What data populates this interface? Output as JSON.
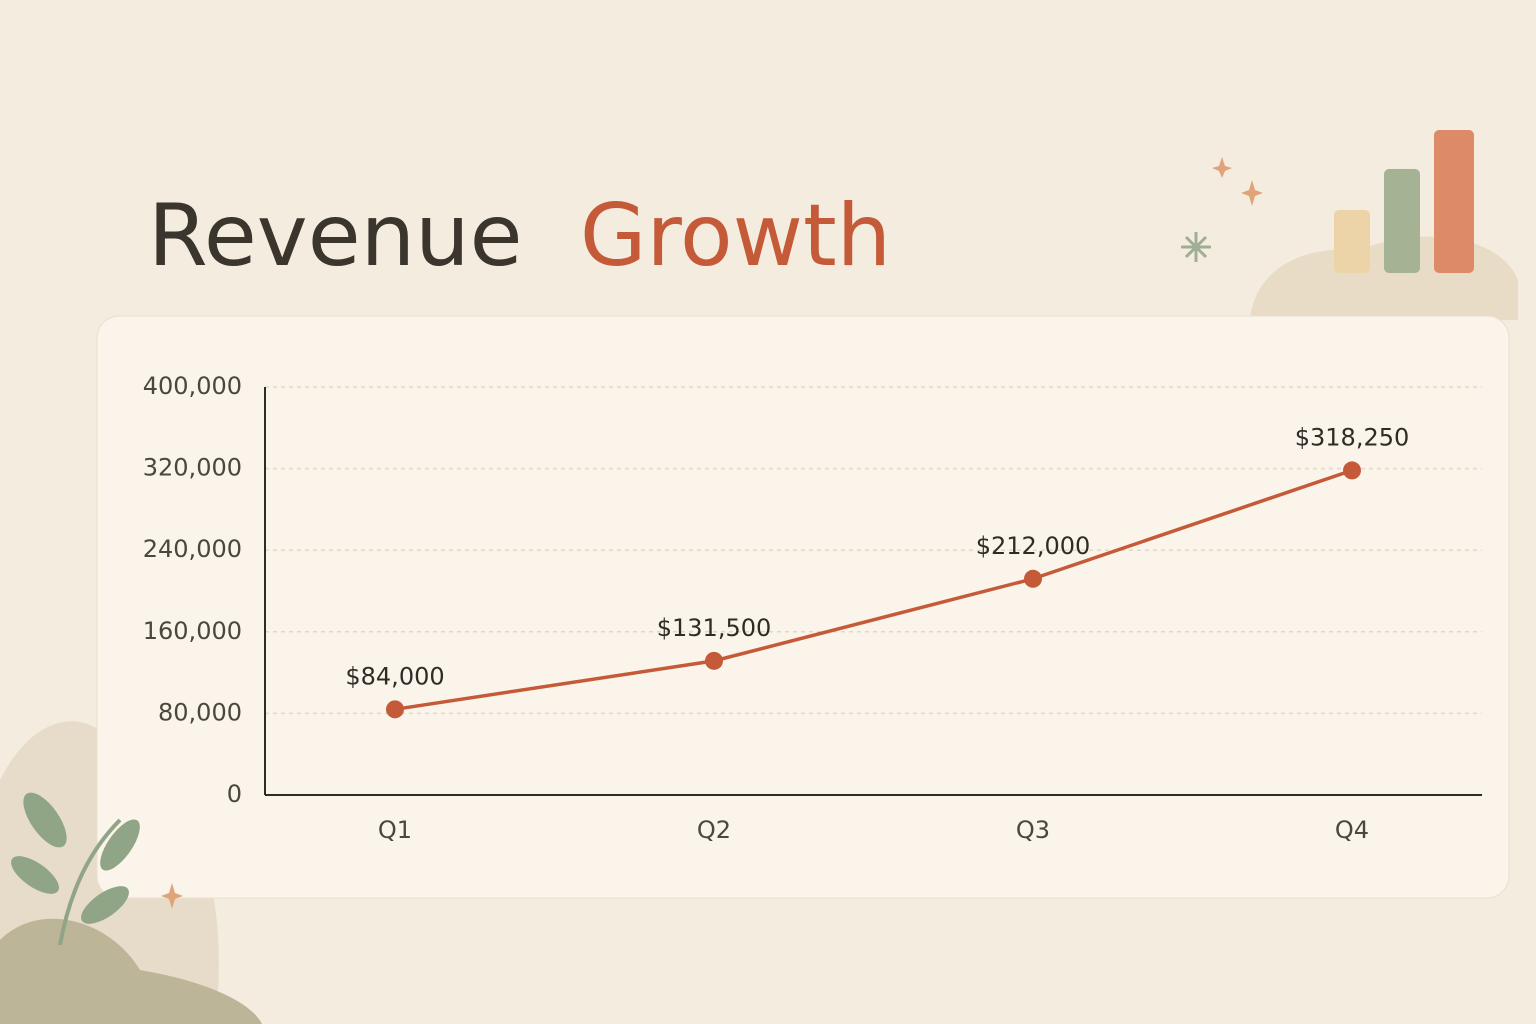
{
  "chart_data": {
    "type": "line",
    "title": [
      "Revenue",
      "Growth"
    ],
    "categories": [
      "Q1",
      "Q2",
      "Q3",
      "Q4"
    ],
    "values": [
      84000,
      131500,
      212000,
      318250
    ],
    "value_labels": [
      "$84,000",
      "$131,500",
      "$212,000",
      "$318,250"
    ],
    "color": "#c45a37",
    "ylim": [
      0,
      400000
    ],
    "yticks": [
      0,
      {
        "value": 80000,
        "label": "80,000"
      },
      {
        "value": 160000,
        "label": "160,000"
      },
      {
        "value": 240000,
        "label": "240,000"
      },
      {
        "value": 320000,
        "label": "320,000"
      },
      {
        "value": 400000,
        "label": "400,000"
      }
    ],
    "grid": true
  }
}
